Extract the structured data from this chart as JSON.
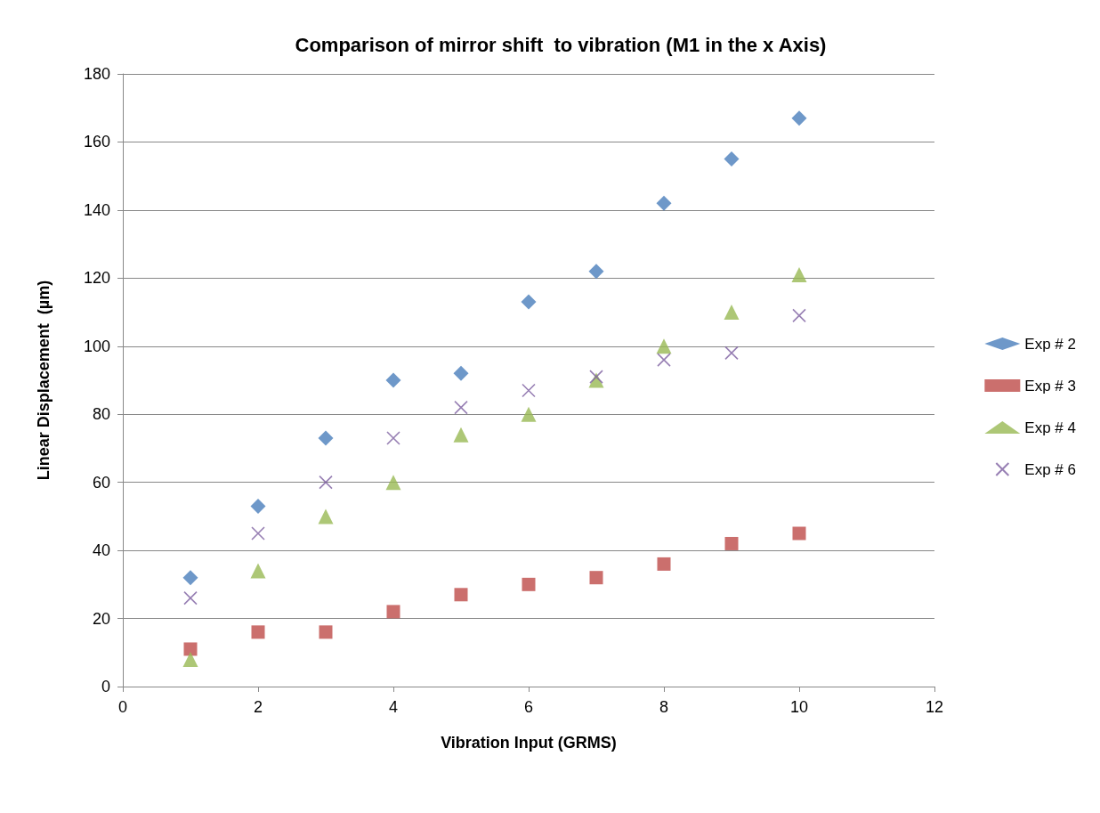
{
  "chart_data": {
    "type": "scatter",
    "title": "Comparison of mirror shift  to vibration (M1 in the x Axis)",
    "xlabel": "Vibration Input (GRMS)",
    "ylabel": "Linear Displacement  (µm)",
    "x": [
      1,
      2,
      3,
      4,
      5,
      6,
      7,
      8,
      9,
      10
    ],
    "series": [
      {
        "name": "Exp # 2",
        "color": "#4a7ebb",
        "marker": "diamond",
        "values": [
          32,
          53,
          73,
          90,
          92,
          113,
          122,
          142,
          155,
          167
        ]
      },
      {
        "name": "Exp # 3",
        "color": "#be4b48",
        "marker": "square",
        "values": [
          11,
          16,
          16,
          22,
          27,
          30,
          32,
          36,
          42,
          45
        ]
      },
      {
        "name": "Exp # 4",
        "color": "#98b954",
        "marker": "triangle",
        "values": [
          8,
          34,
          50,
          60,
          74,
          80,
          90,
          100,
          110,
          121
        ]
      },
      {
        "name": "Exp # 6",
        "color": "#7d5fa0",
        "marker": "cross",
        "values": [
          26,
          45,
          60,
          73,
          82,
          87,
          91,
          96,
          98,
          109
        ]
      }
    ],
    "xlim": [
      0,
      12
    ],
    "xticks": [
      0,
      2,
      4,
      6,
      8,
      10,
      12
    ],
    "ylim": [
      0,
      180
    ],
    "yticks": [
      0,
      20,
      40,
      60,
      80,
      100,
      120,
      140,
      160,
      180
    ],
    "grid": "y",
    "legend": "right"
  }
}
